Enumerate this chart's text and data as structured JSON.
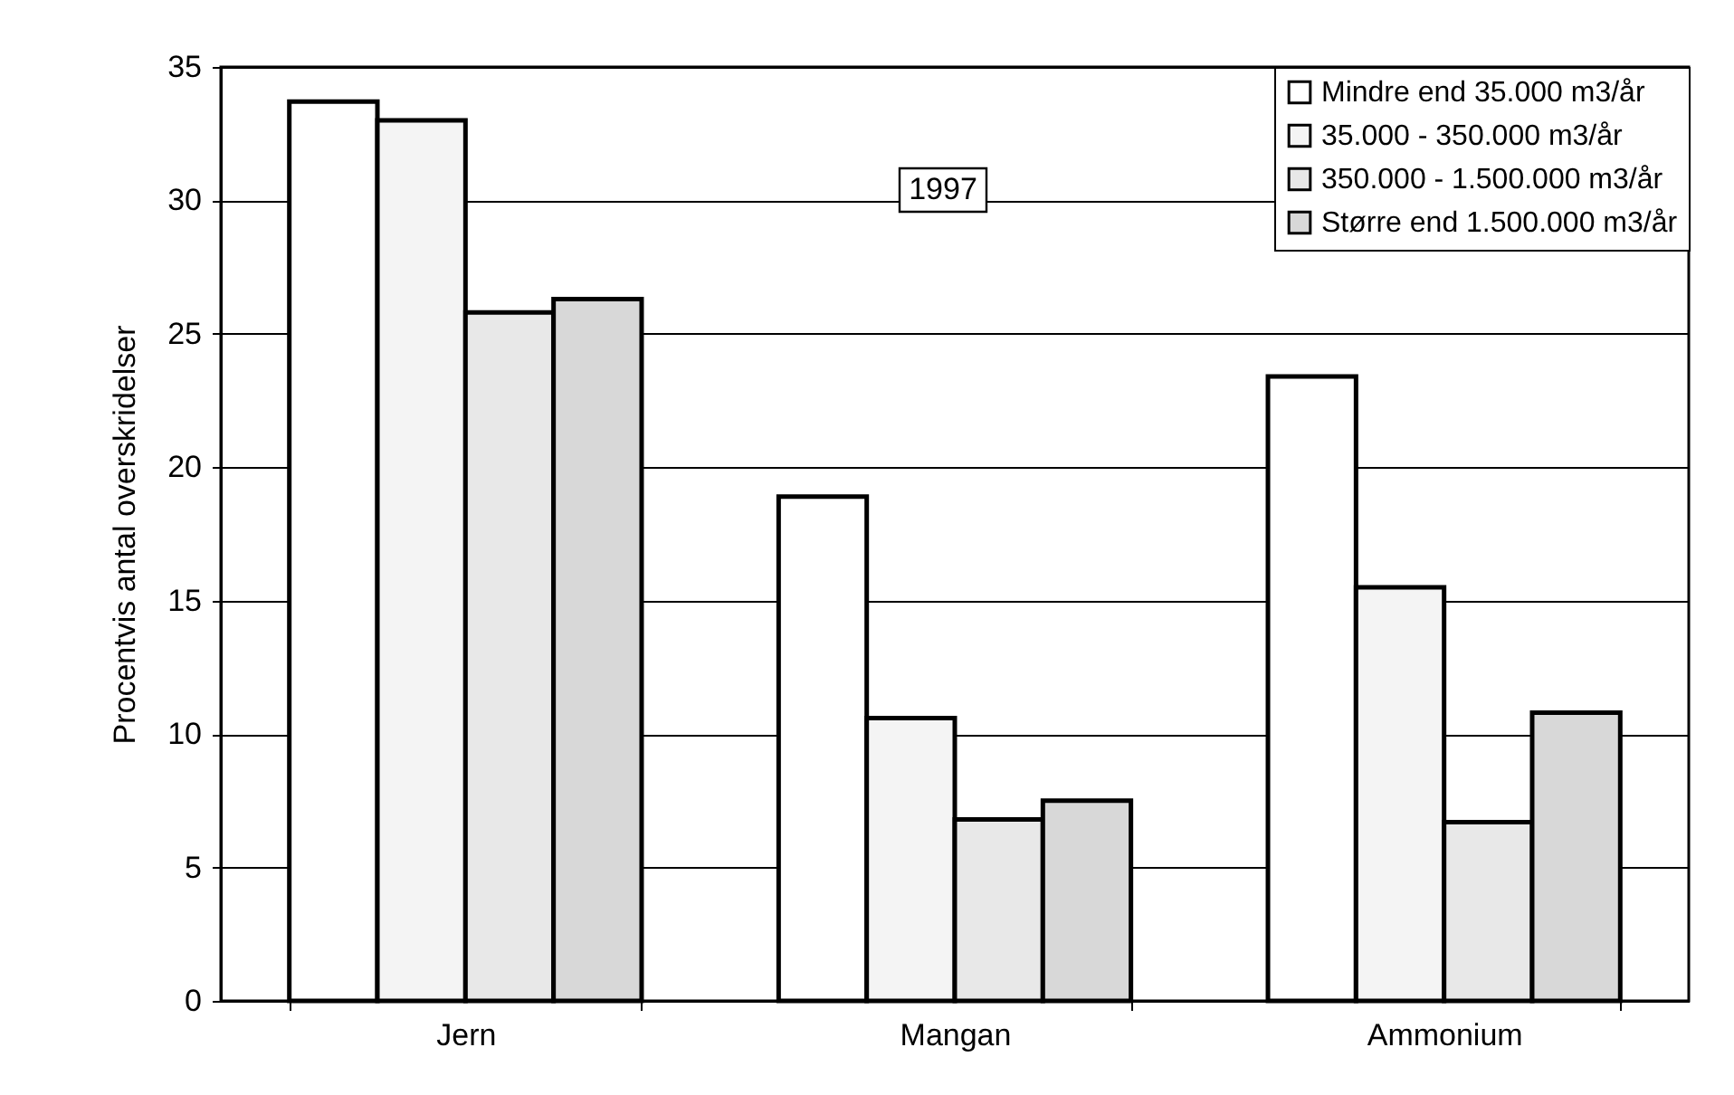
{
  "chart_data": {
    "type": "bar",
    "ylabel": "Procentvis antal overskridelser",
    "categories": [
      "Jern",
      "Mangan",
      "Ammonium"
    ],
    "series": [
      {
        "name": "Mindre end 35.000 m3/år",
        "color": "#ffffff",
        "values": [
          33.7,
          18.9,
          23.4
        ]
      },
      {
        "name": "35.000 - 350.000 m3/år",
        "color": "#f4f4f4",
        "values": [
          33.0,
          10.6,
          15.5
        ]
      },
      {
        "name": "350.000 - 1.500.000 m3/år",
        "color": "#e8e8e8",
        "values": [
          25.8,
          6.8,
          6.7
        ]
      },
      {
        "name": "Større end 1.500.000 m3/år",
        "color": "#d8d8d8",
        "values": [
          26.3,
          7.5,
          10.8
        ]
      }
    ],
    "ylim": [
      0,
      35
    ],
    "yticks": [
      0,
      5,
      10,
      15,
      20,
      25,
      30,
      35
    ],
    "grid": "y",
    "legend": "top right",
    "annotations": [
      "1997"
    ]
  }
}
